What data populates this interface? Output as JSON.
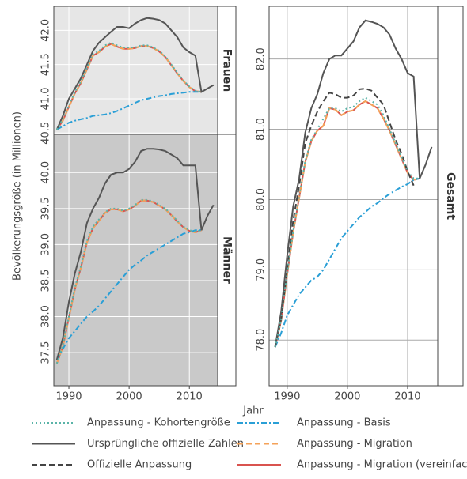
{
  "y_label": "Bevölkerungsgröße (in Millionen)",
  "x_label": "Jahr",
  "chart_data": [
    {
      "type": "line",
      "strip": "Frauen",
      "xlim": [
        1987.5,
        2014.7
      ],
      "ylim": [
        40.48,
        42.35
      ],
      "xticks": [
        1990,
        2000,
        2010
      ],
      "yticks": [
        40.5,
        {
          "value": 41,
          "label": "41.0"
        },
        41.5,
        {
          "value": 42,
          "label": "42.0"
        }
      ],
      "x": [
        1988,
        1989,
        1990,
        1991,
        1992,
        1993,
        1994,
        1995,
        1996,
        1997,
        1998,
        1999,
        2000,
        2001,
        2002,
        2003,
        2004,
        2005,
        2006,
        2007,
        2008,
        2009,
        2010,
        2011,
        2012,
        2013,
        2014
      ],
      "series": [
        {
          "name": "Anpassung - Kohortengröße",
          "color": "#5ab4a8",
          "dash": "dotted",
          "values": [
            40.55,
            40.7,
            40.9,
            41.1,
            41.25,
            41.45,
            41.65,
            41.7,
            41.78,
            41.82,
            41.78,
            41.75,
            41.75,
            41.75,
            41.78,
            41.78,
            41.75,
            41.7,
            41.62,
            41.5,
            41.38,
            41.27,
            41.18,
            41.12,
            41.1,
            null,
            null
          ]
        },
        {
          "name": "Ursprüngliche offizielle Zahlen",
          "color": "#555555",
          "dash": "solid",
          "values": [
            40.55,
            40.75,
            41.0,
            41.15,
            41.3,
            41.5,
            41.7,
            41.82,
            41.9,
            41.98,
            42.05,
            42.05,
            42.03,
            42.1,
            42.15,
            42.18,
            42.17,
            42.15,
            42.1,
            42.0,
            41.9,
            41.75,
            41.68,
            41.63,
            41.1,
            41.15,
            41.2
          ]
        },
        {
          "name": "Anpassung - Basis",
          "color": "#2a9fd6",
          "dash": "dashdot",
          "values": [
            40.55,
            40.6,
            40.65,
            40.68,
            40.7,
            40.72,
            40.75,
            40.76,
            40.77,
            40.79,
            40.82,
            40.86,
            40.9,
            40.94,
            40.98,
            41.0,
            41.02,
            41.04,
            41.05,
            41.07,
            41.08,
            41.09,
            41.1,
            41.1,
            41.1,
            null,
            null
          ]
        },
        {
          "name": "Anpassung - Migration",
          "color": "#f4a259",
          "dash": "dashed",
          "values": [
            40.55,
            40.68,
            40.88,
            41.08,
            41.23,
            41.43,
            41.63,
            41.68,
            41.76,
            41.8,
            41.76,
            41.73,
            41.73,
            41.74,
            41.77,
            41.77,
            41.74,
            41.69,
            41.61,
            41.49,
            41.37,
            41.26,
            41.17,
            41.11,
            41.1,
            null,
            null
          ]
        },
        {
          "name": "Anpassung - Migration (vereinfacht)",
          "color": "#d9534f",
          "dash": "solid",
          "values": [
            40.55,
            40.68,
            40.88,
            41.08,
            41.23,
            41.43,
            41.63,
            41.68,
            41.76,
            41.8,
            41.76,
            41.73,
            41.73,
            41.74,
            41.77,
            41.77,
            41.74,
            41.69,
            41.61,
            41.49,
            41.37,
            41.26,
            41.17,
            41.11,
            41.1,
            null,
            null
          ]
        }
      ]
    },
    {
      "type": "line",
      "strip": "Männer",
      "xlim": [
        1987.5,
        2014.7
      ],
      "ylim": [
        37.04,
        40.53
      ],
      "xticks": [
        1990,
        2000,
        2010
      ],
      "yticks": [
        37.5,
        {
          "value": 38,
          "label": "38.0"
        },
        38.5,
        {
          "value": 39,
          "label": "39.0"
        },
        39.5,
        {
          "value": 40,
          "label": "40.0"
        }
      ],
      "x": [
        1988,
        1989,
        1990,
        1991,
        1992,
        1993,
        1994,
        1995,
        1996,
        1997,
        1998,
        1999,
        2000,
        2001,
        2002,
        2003,
        2004,
        2005,
        2006,
        2007,
        2008,
        2009,
        2010,
        2011,
        2012,
        2013,
        2014
      ],
      "series": [
        {
          "name": "Anpassung - Kohortengröße",
          "color": "#5ab4a8",
          "dash": "dotted",
          "values": [
            37.35,
            37.6,
            38.0,
            38.4,
            38.7,
            39.05,
            39.25,
            39.35,
            39.45,
            39.5,
            39.5,
            39.47,
            39.5,
            39.55,
            39.62,
            39.62,
            39.6,
            39.55,
            39.5,
            39.42,
            39.33,
            39.25,
            39.2,
            39.18,
            39.2,
            null,
            null
          ]
        },
        {
          "name": "Ursprüngliche offizielle Zahlen",
          "color": "#555555",
          "dash": "solid",
          "values": [
            37.4,
            37.7,
            38.2,
            38.6,
            38.9,
            39.3,
            39.5,
            39.65,
            39.85,
            39.97,
            40.0,
            40.0,
            40.05,
            40.15,
            40.3,
            40.33,
            40.33,
            40.32,
            40.3,
            40.25,
            40.2,
            40.1,
            40.1,
            40.1,
            39.2,
            39.4,
            39.55
          ]
        },
        {
          "name": "Anpassung - Basis",
          "color": "#2a9fd6",
          "dash": "dashdot",
          "values": [
            37.4,
            37.55,
            37.7,
            37.8,
            37.9,
            38.0,
            38.07,
            38.15,
            38.25,
            38.35,
            38.45,
            38.55,
            38.65,
            38.72,
            38.78,
            38.85,
            38.9,
            38.95,
            39.0,
            39.05,
            39.1,
            39.15,
            39.17,
            39.2,
            39.2,
            null,
            null
          ]
        },
        {
          "name": "Anpassung - Migration",
          "color": "#f4a259",
          "dash": "dashed",
          "values": [
            37.35,
            37.58,
            37.98,
            38.38,
            38.68,
            39.03,
            39.23,
            39.33,
            39.44,
            39.49,
            39.49,
            39.46,
            39.49,
            39.54,
            39.61,
            39.61,
            39.59,
            39.54,
            39.49,
            39.41,
            39.32,
            39.24,
            39.19,
            39.17,
            39.2,
            null,
            null
          ]
        },
        {
          "name": "Anpassung - Migration (vereinfacht)",
          "color": "#d9534f",
          "dash": "solid",
          "values": [
            37.35,
            37.58,
            37.98,
            38.38,
            38.68,
            39.03,
            39.23,
            39.33,
            39.44,
            39.49,
            39.49,
            39.46,
            39.49,
            39.54,
            39.61,
            39.61,
            39.59,
            39.54,
            39.49,
            39.41,
            39.32,
            39.24,
            39.19,
            39.17,
            39.2,
            null,
            null
          ]
        }
      ]
    },
    {
      "type": "line",
      "strip": "Gesamt",
      "xlim": [
        1987,
        2015
      ],
      "ylim": [
        77.35,
        82.75
      ],
      "xticks": [
        1990,
        2000,
        2010
      ],
      "yticks": [
        {
          "value": 78,
          "label": "78.0"
        },
        {
          "value": 79,
          "label": "79.0"
        },
        {
          "value": 80,
          "label": "80.0"
        },
        {
          "value": 81,
          "label": "81.0"
        },
        {
          "value": 82,
          "label": "82.0"
        }
      ],
      "x": [
        1988,
        1989,
        1990,
        1991,
        1992,
        1993,
        1994,
        1995,
        1996,
        1997,
        1998,
        1999,
        2000,
        2001,
        2002,
        2003,
        2004,
        2005,
        2006,
        2007,
        2008,
        2009,
        2010,
        2011,
        2012,
        2013,
        2014
      ],
      "series": [
        {
          "name": "Anpassung - Kohortengröße",
          "color": "#5ab4a8",
          "dash": "dotted",
          "values": [
            77.9,
            78.3,
            78.95,
            79.55,
            80.05,
            80.55,
            80.85,
            81.0,
            81.15,
            81.3,
            81.3,
            81.25,
            81.3,
            81.32,
            81.4,
            81.45,
            81.4,
            81.35,
            81.2,
            81.0,
            80.8,
            80.6,
            80.4,
            80.3,
            80.3,
            null,
            null
          ]
        },
        {
          "name": "Ursprüngliche offizielle Zahlen",
          "color": "#555555",
          "dash": "solid",
          "values": [
            77.9,
            78.4,
            79.2,
            79.9,
            80.3,
            80.95,
            81.3,
            81.5,
            81.8,
            82.0,
            82.05,
            82.05,
            82.15,
            82.25,
            82.45,
            82.55,
            82.53,
            82.5,
            82.45,
            82.35,
            82.15,
            82.0,
            81.8,
            81.75,
            80.3,
            80.5,
            80.75
          ]
        },
        {
          "name": "Offizielle Anpassung",
          "color": "#444444",
          "dash": "dashed",
          "values": [
            77.9,
            78.3,
            79.0,
            79.7,
            80.2,
            80.8,
            81.05,
            81.25,
            81.4,
            81.52,
            81.5,
            81.45,
            81.45,
            81.48,
            81.57,
            81.58,
            81.55,
            81.45,
            81.35,
            81.1,
            80.85,
            80.65,
            80.4,
            80.2,
            null,
            null,
            null
          ]
        },
        {
          "name": "Anpassung - Basis",
          "color": "#2a9fd6",
          "dash": "dashdot",
          "values": [
            77.9,
            78.1,
            78.35,
            78.5,
            78.65,
            78.75,
            78.85,
            78.9,
            79.0,
            79.15,
            79.3,
            79.45,
            79.55,
            79.65,
            79.75,
            79.82,
            79.9,
            79.95,
            80.02,
            80.08,
            80.13,
            80.18,
            80.22,
            80.28,
            80.3,
            null,
            null
          ]
        },
        {
          "name": "Anpassung - Migration",
          "color": "#f4a259",
          "dash": "dashed",
          "values": [
            77.9,
            78.28,
            78.93,
            79.53,
            80.03,
            80.53,
            80.83,
            80.98,
            81.05,
            81.3,
            81.28,
            81.2,
            81.25,
            81.27,
            81.35,
            81.4,
            81.35,
            81.3,
            81.15,
            80.98,
            80.78,
            80.58,
            80.38,
            80.28,
            80.3,
            null,
            null
          ]
        },
        {
          "name": "Anpassung - Migration (vereinfacht)",
          "color": "#d9534f",
          "dash": "solid",
          "values": [
            77.9,
            78.28,
            78.93,
            79.53,
            80.03,
            80.53,
            80.83,
            80.98,
            81.05,
            81.3,
            81.28,
            81.2,
            81.25,
            81.27,
            81.35,
            81.4,
            81.35,
            81.3,
            81.15,
            80.98,
            80.78,
            80.58,
            80.38,
            80.28,
            80.3,
            null,
            null
          ]
        }
      ]
    }
  ]
}
